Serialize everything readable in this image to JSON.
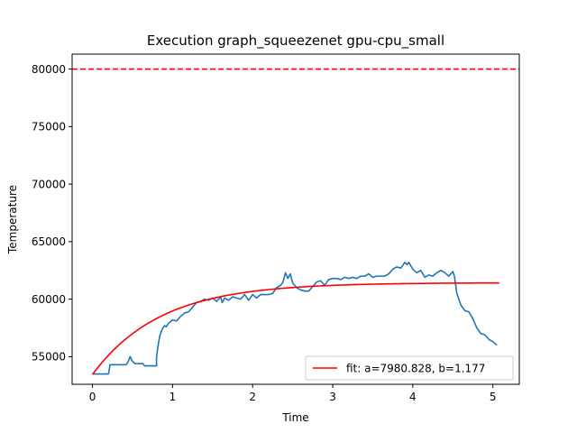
{
  "chart_data": {
    "type": "line",
    "title": "Execution graph_squeezenet gpu-cpu_small",
    "xlabel": "Time",
    "ylabel": "Temperature",
    "xlim": [
      -0.254,
      5.33
    ],
    "ylim": [
      52600,
      81300
    ],
    "xticks": [
      0,
      1,
      2,
      3,
      4,
      5
    ],
    "yticks": [
      55000,
      60000,
      65000,
      70000,
      75000,
      80000
    ],
    "grid": false,
    "legend_position": "bottom-right",
    "threshold": {
      "value": 80000,
      "color": "#ff0000",
      "style": "dashed"
    },
    "series": [
      {
        "kind": "measured",
        "color": "#1f77b4",
        "x": [
          0.0,
          0.1,
          0.2,
          0.22,
          0.35,
          0.42,
          0.44,
          0.47,
          0.5,
          0.53,
          0.57,
          0.6,
          0.63,
          0.65,
          0.7,
          0.73,
          0.77,
          0.8,
          0.8,
          0.82,
          0.84,
          0.86,
          0.88,
          0.9,
          0.92,
          0.95,
          1.0,
          1.05,
          1.1,
          1.15,
          1.2,
          1.25,
          1.3,
          1.35,
          1.4,
          1.45,
          1.5,
          1.55,
          1.6,
          1.62,
          1.65,
          1.7,
          1.75,
          1.8,
          1.85,
          1.9,
          1.95,
          2.0,
          2.05,
          2.1,
          2.15,
          2.2,
          2.25,
          2.3,
          2.35,
          2.38,
          2.41,
          2.44,
          2.47,
          2.5,
          2.55,
          2.6,
          2.65,
          2.7,
          2.75,
          2.8,
          2.85,
          2.9,
          2.95,
          3.0,
          3.05,
          3.1,
          3.15,
          3.2,
          3.25,
          3.3,
          3.35,
          3.4,
          3.45,
          3.5,
          3.55,
          3.6,
          3.65,
          3.7,
          3.75,
          3.8,
          3.85,
          3.9,
          3.93,
          3.95,
          4.0,
          4.05,
          4.1,
          4.15,
          4.2,
          4.25,
          4.3,
          4.35,
          4.4,
          4.45,
          4.5,
          4.52,
          4.55,
          4.6,
          4.65,
          4.7,
          4.75,
          4.8,
          4.85,
          4.9,
          4.95,
          5.0,
          5.05
        ],
        "y": [
          53500,
          53500,
          53500,
          54300,
          54300,
          54300,
          54500,
          55000,
          54600,
          54400,
          54400,
          54400,
          54400,
          54200,
          54200,
          54200,
          54200,
          54200,
          55000,
          56000,
          56800,
          57200,
          57500,
          57700,
          57600,
          57900,
          58200,
          58100,
          58500,
          58800,
          58900,
          59300,
          59700,
          59800,
          60000,
          59900,
          60100,
          59800,
          60200,
          59700,
          60100,
          59900,
          60200,
          60100,
          60000,
          60400,
          59900,
          60400,
          60100,
          60400,
          60400,
          60400,
          60500,
          61000,
          61200,
          61500,
          62300,
          61800,
          62200,
          61400,
          61000,
          60800,
          60700,
          60700,
          61100,
          61500,
          61600,
          61200,
          61700,
          61800,
          61800,
          61700,
          61900,
          61800,
          61900,
          61800,
          62000,
          62000,
          62200,
          61900,
          62000,
          62000,
          62000,
          62200,
          62600,
          62800,
          62700,
          63200,
          63000,
          63200,
          62600,
          62300,
          62500,
          61900,
          62100,
          62000,
          62300,
          62500,
          62300,
          62000,
          62400,
          62000,
          60500,
          59500,
          59000,
          58900,
          58300,
          57500,
          57000,
          56900,
          56500,
          56300,
          56000
        ]
      },
      {
        "kind": "fit",
        "name": "fit: a=7980.828, b=1.177",
        "color": "#ff0000",
        "formula": {
          "type": "exp_saturation",
          "base": 53450,
          "a": 7980.828,
          "b": 1.177,
          "xmin": 0,
          "xmax": 5.08
        }
      }
    ]
  }
}
